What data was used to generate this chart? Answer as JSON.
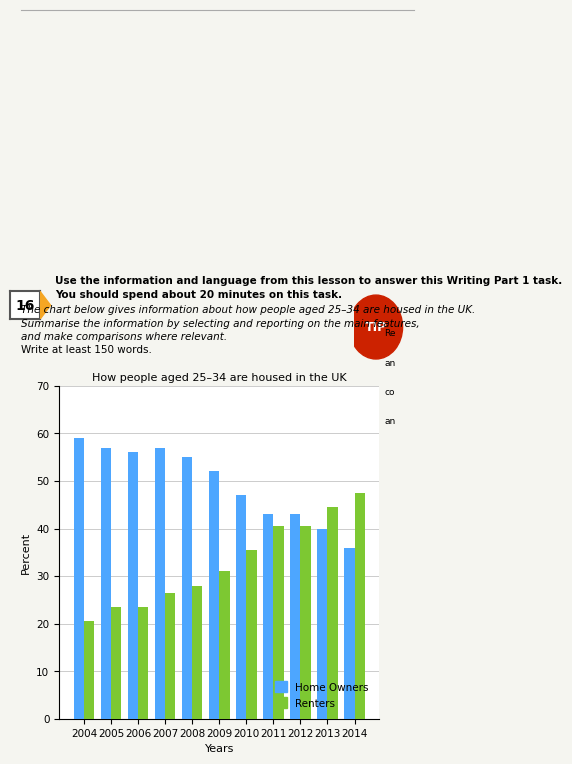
{
  "title": "How people aged 25–34 are housed in the UK",
  "xlabel": "Years",
  "ylabel": "Percent",
  "years": [
    2004,
    2005,
    2006,
    2007,
    2008,
    2009,
    2010,
    2011,
    2012,
    2013,
    2014
  ],
  "home_owners": [
    59,
    57,
    56,
    57,
    55,
    52,
    47,
    43,
    43,
    40,
    36
  ],
  "renters": [
    20.5,
    23.5,
    23.5,
    26.5,
    28,
    31,
    35.5,
    40.5,
    40.5,
    44.5,
    47.5
  ],
  "home_color": "#4DA6FF",
  "renter_color": "#7DC832",
  "ylim": [
    0,
    70
  ],
  "yticks": [
    0,
    10,
    20,
    30,
    40,
    50,
    60,
    70
  ],
  "bar_width": 0.38,
  "legend_labels": [
    "Home Owners",
    "Renters"
  ],
  "grid_color": "#CCCCCC",
  "background_color": "#F5F5F0",
  "chart_bg": "#FFFFFF",
  "title_fontsize": 8,
  "axis_label_fontsize": 8,
  "tick_fontsize": 7.5,
  "header_line1": "Use the information and language from this lesson to answer this Writing Part 1 task.",
  "header_line2": "You should spend about 20 minutes on this task.",
  "header_italic1": "The chart below gives information about how people aged 25–34 are housed in the UK.",
  "header_italic2": "Summarise the information by selecting and reporting on the main features,",
  "header_italic3": "and make comparisons where relevant.",
  "header_line_write": "Write at least 150 words.",
  "num_label": "16",
  "tip_color": "#CC2200",
  "tip_box_color": "#F5A623",
  "num_box_color": "#F5A623"
}
